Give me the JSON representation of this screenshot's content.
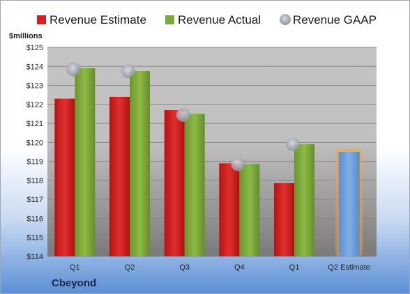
{
  "company": "Cbeyond",
  "chart_data": {
    "type": "bar",
    "unit_label": "$millions",
    "categories": [
      "Q1",
      "Q2",
      "Q3",
      "Q4",
      "Q1",
      "Q2 Estimate"
    ],
    "series": [
      {
        "name": "Revenue Estimate",
        "color": "#d42020",
        "values": [
          122.3,
          122.4,
          121.7,
          118.9,
          117.85,
          null
        ]
      },
      {
        "name": "Revenue Actual",
        "color": "#7fa83a",
        "values": [
          123.9,
          123.75,
          121.5,
          118.85,
          119.9,
          null
        ]
      },
      {
        "name": "Revenue GAAP",
        "color": "#a9aebb",
        "type": "scatter",
        "values": [
          123.85,
          123.75,
          121.45,
          118.85,
          119.9,
          null
        ]
      }
    ],
    "estimate_bar": {
      "category": "Q2 Estimate",
      "value": 119.5,
      "color": "#6f9fd8",
      "glow": "#f4a236"
    },
    "ylim": [
      114,
      125
    ],
    "yticks": [
      "$114",
      "$115",
      "$116",
      "$117",
      "$118",
      "$119",
      "$120",
      "$121",
      "$122",
      "$123",
      "$124",
      "$125"
    ],
    "grid": true,
    "legend_position": "top"
  }
}
